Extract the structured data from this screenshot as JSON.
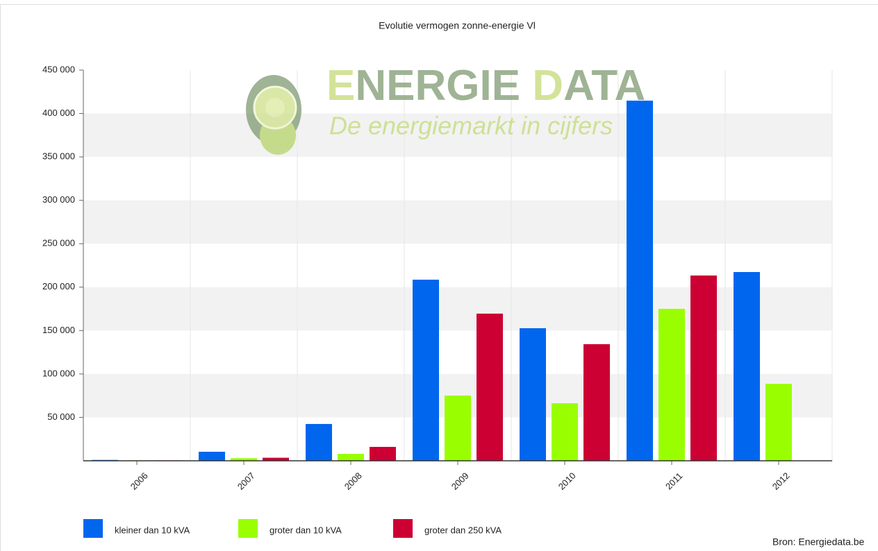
{
  "chart_data": {
    "type": "bar",
    "title": "Evolutie vermogen zonne-energie Vl",
    "watermark": {
      "title_first": "E",
      "title_rest": "NERGIE ",
      "title_second": "D",
      "title_end": "ATA",
      "subtitle": "De energiemarkt in cijfers"
    },
    "source": "Bron: Energiedata.be",
    "categories": [
      "2006",
      "2007",
      "2008",
      "2009",
      "2010",
      "2011",
      "2012"
    ],
    "series": [
      {
        "name": "kleiner dan 10 kVA",
        "color": "#0066ee",
        "values": [
          1000,
          10400,
          42400,
          208600,
          152700,
          414800,
          217400
        ]
      },
      {
        "name": "groter dan 10 kVA",
        "color": "#99ff00",
        "values": [
          500,
          3000,
          8000,
          75100,
          66300,
          175000,
          88700
        ]
      },
      {
        "name": "groter dan 250 kVA",
        "color": "#cc0033",
        "values": [
          500,
          3500,
          16000,
          169500,
          134300,
          213400,
          null
        ]
      }
    ],
    "ylim": [
      0,
      450000
    ],
    "yticks": [
      {
        "value": 50000,
        "label": "50 000"
      },
      {
        "value": 100000,
        "label": "100 000"
      },
      {
        "value": 150000,
        "label": "150 000"
      },
      {
        "value": 200000,
        "label": "200 000"
      },
      {
        "value": 250000,
        "label": "250 000"
      },
      {
        "value": 300000,
        "label": "300 000"
      },
      {
        "value": 350000,
        "label": "350 000"
      },
      {
        "value": 400000,
        "label": "400 000"
      },
      {
        "value": 450000,
        "label": "450 000"
      }
    ],
    "alternate_bands": true,
    "legend": "bottom-left"
  }
}
